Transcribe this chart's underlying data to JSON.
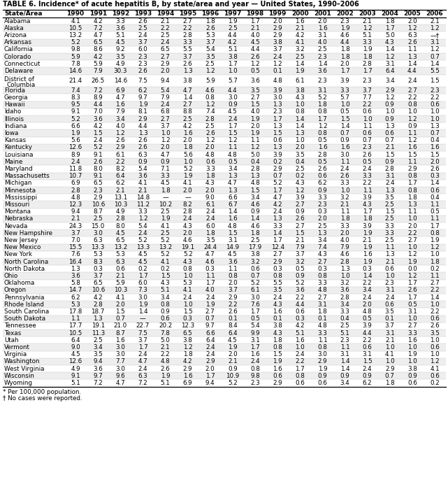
{
  "title": "TABLE 6. Incidence* of acute hepatitis B, by state/area and year — United States, 1990–2006",
  "headers": [
    "State/Area",
    "1990",
    "1991",
    "1992",
    "1993",
    "1994",
    "1995",
    "1996",
    "1997",
    "1998",
    "1999",
    "2000",
    "2001",
    "2002",
    "2003",
    "2004",
    "2005",
    "2006"
  ],
  "rows": [
    [
      "Alabama",
      "4.1",
      "4.2",
      "3.3",
      "2.6",
      "2.1",
      "2.7",
      "1.8",
      "1.9",
      "1.7",
      "2.0",
      "1.6",
      "2.0",
      "2.3",
      "2.1",
      "1.8",
      "2.0",
      "2.1"
    ],
    [
      "Alaska",
      "10.5",
      "7.2",
      "3.6",
      "2.5",
      "2.2",
      "2.2",
      "2.6",
      "2.5",
      "2.1",
      "2.9",
      "2.1",
      "1.6",
      "1.9",
      "1.2",
      "1.7",
      "1.2",
      "1.2"
    ],
    [
      "Arizona",
      "13.2",
      "4.7",
      "5.1",
      "2.4",
      "2.5",
      "2.8",
      "5.3",
      "4.4",
      "4.0",
      "2.9",
      "4.2",
      "3.1",
      "4.6",
      "5.1",
      "5.0",
      "6.3",
      "—†"
    ],
    [
      "Arkansas",
      "5.2",
      "6.5",
      "4.5",
      "3.7",
      "2.4",
      "3.3",
      "3.7",
      "4.2",
      "4.5",
      "3.8",
      "4.1",
      "4.0",
      "4.4",
      "3.3",
      "4.3",
      "2.6",
      "3.1"
    ],
    [
      "California",
      "9.8",
      "8.6",
      "9.2",
      "6.0",
      "6.5",
      "5.5",
      "5.4",
      "5.1",
      "4.4",
      "3.7",
      "3.2",
      "2.5",
      "1.8",
      "1.9",
      "1.4",
      "1.1",
      "1.2"
    ],
    [
      "Colorado",
      "5.9",
      "4.2",
      "3.5",
      "2.3",
      "2.7",
      "3.7",
      "3.5",
      "3.8",
      "2.6",
      "2.4",
      "2.5",
      "2.3",
      "1.8",
      "1.8",
      "1.2",
      "1.3",
      "0.7"
    ],
    [
      "Connecticut",
      "7.8",
      "5.9",
      "4.9",
      "2.3",
      "2.9",
      "2.6",
      "2.5",
      "1.7",
      "1.2",
      "1.2",
      "1.4",
      "1.4",
      "2.0",
      "2.8",
      "3.1",
      "1.4",
      "1.4"
    ],
    [
      "Delaware",
      "14.6",
      "7.9",
      "30.3",
      "2.6",
      "2.0",
      "1.3",
      "1.2",
      "1.0",
      "0.5",
      "0.1",
      "1.9",
      "3.6",
      "1.7",
      "1.7",
      "6.4",
      "4.4",
      "5.5"
    ],
    [
      "District of\nColumbia",
      "21.4",
      "26.5",
      "14.6",
      "7.5",
      "9.4",
      "3.8",
      "5.9",
      "5.7",
      "3.6",
      "4.8",
      "6.1",
      "2.3",
      "3.9",
      "2.3",
      "3.4",
      "2.4",
      "1.5"
    ],
    [
      "Florida",
      "7.4",
      "7.2",
      "6.9",
      "6.2",
      "5.4",
      "4.7",
      "4.6",
      "4.4",
      "3.5",
      "3.9",
      "3.8",
      "3.1",
      "3.3",
      "3.7",
      "2.9",
      "2.7",
      "2.3"
    ],
    [
      "Georgia",
      "8.3",
      "8.9",
      "4.7",
      "9.7",
      "7.9",
      "1.4",
      "0.8",
      "3.0",
      "2.7",
      "3.0",
      "4.3",
      "5.2",
      "5.7",
      "7.7",
      "1.2",
      "2.2",
      "2.2"
    ],
    [
      "Hawaii",
      "9.5",
      "4.4",
      "1.6",
      "1.9",
      "2.4",
      "2.7",
      "1.2",
      "0.9",
      "1.5",
      "1.3",
      "1.0",
      "1.8",
      "1.0",
      "2.2",
      "0.9",
      "0.8",
      "0.6"
    ],
    [
      "Idaho",
      "9.1",
      "7.0",
      "7.9",
      "8.1",
      "6.8",
      "8.8",
      "7.4",
      "4.5",
      "4.0",
      "2.3",
      "0.8",
      "0.8",
      "0.5",
      "0.6",
      "1.0",
      "1.0",
      "1.0"
    ],
    [
      "Illinois",
      "5.2",
      "3.6",
      "3.4",
      "2.9",
      "2.7",
      "2.5",
      "2.8",
      "2.4",
      "1.9",
      "1.7",
      "1.4",
      "1.7",
      "1.5",
      "1.0",
      "0.9",
      "1.2",
      "1.0"
    ],
    [
      "Indiana",
      "6.6",
      "4.2",
      "4.0",
      "4.4",
      "3.7",
      "4.2",
      "2.5",
      "1.7",
      "2.0",
      "1.3",
      "1.4",
      "1.2",
      "1.4",
      "1.1",
      "1.3",
      "0.9",
      "1.3"
    ],
    [
      "Iowa",
      "1.9",
      "1.5",
      "1.2",
      "1.3",
      "1.0",
      "1.6",
      "2.6",
      "1.5",
      "1.9",
      "1.5",
      "1.3",
      "0.8",
      "0.7",
      "0.6",
      "0.6",
      "1.1",
      "0.7"
    ],
    [
      "Kansas",
      "5.6",
      "2.4",
      "2.6",
      "2.6",
      "1.2",
      "2.0",
      "1.2",
      "1.2",
      "1.1",
      "0.6",
      "1.0",
      "0.5",
      "0.9",
      "0.7",
      "0.7",
      "1.2",
      "0.4"
    ],
    [
      "Kentucky",
      "12.6",
      "5.2",
      "2.9",
      "2.6",
      "2.0",
      "1.8",
      "2.0",
      "1.1",
      "1.2",
      "1.3",
      "2.0",
      "1.6",
      "1.6",
      "2.3",
      "2.1",
      "1.6",
      "1.6"
    ],
    [
      "Louisiana",
      "8.9",
      "9.1",
      "6.1",
      "6.3",
      "4.7",
      "5.6",
      "4.8",
      "4.8",
      "5.0",
      "3.9",
      "3.5",
      "2.8",
      "3.0",
      "2.6",
      "1.5",
      "1.5",
      "1.5"
    ],
    [
      "Maine",
      "2.4",
      "2.6",
      "2.2",
      "0.9",
      "0.9",
      "1.0",
      "0.6",
      "0.5",
      "0.4",
      "0.2",
      "0.4",
      "0.5",
      "1.1",
      "0.5",
      "0.9",
      "1.1",
      "2.0"
    ],
    [
      "Maryland",
      "11.8",
      "8.0",
      "8.2",
      "5.4",
      "7.1",
      "5.2",
      "3.3",
      "3.4",
      "2.8",
      "2.9",
      "2.5",
      "2.6",
      "2.4",
      "2.4",
      "2.8",
      "2.9",
      "2.6"
    ],
    [
      "Massachusetts",
      "10.7",
      "9.1",
      "6.4",
      "3.6",
      "3.3",
      "1.9",
      "1.8",
      "1.3",
      "1.3",
      "0.7",
      "0.2",
      "0.6",
      "2.6",
      "3.3",
      "3.1",
      "0.8",
      "0.3"
    ],
    [
      "Michigan",
      "6.9",
      "6.5",
      "6.2",
      "4.1",
      "4.5",
      "4.1",
      "4.3",
      "4.7",
      "4.8",
      "5.2",
      "4.3",
      "6.2",
      "3.3",
      "2.2",
      "2.4",
      "1.7",
      "1.4"
    ],
    [
      "Minnesota",
      "2.8",
      "2.3",
      "2.1",
      "2.1",
      "1.8",
      "2.0",
      "2.0",
      "1.3",
      "1.5",
      "1.7",
      "1.2",
      "0.9",
      "1.0",
      "1.1",
      "1.3",
      "0.8",
      "0.6"
    ],
    [
      "Mississippi",
      "4.8",
      "2.9",
      "13.1",
      "14.8",
      "—",
      "—",
      "9.0",
      "6.6",
      "3.4",
      "4.7",
      "3.9",
      "3.3",
      "3.2",
      "3.9",
      "3.5",
      "1.8",
      "0.4"
    ],
    [
      "Missouri",
      "12.3",
      "10.6",
      "10.3",
      "11.2",
      "10.2",
      "8.2",
      "6.1",
      "6.7",
      "4.6",
      "4.2",
      "2.7",
      "2.3",
      "2.1",
      "4.3",
      "2.5",
      "1.3",
      "1.1"
    ],
    [
      "Montana",
      "9.4",
      "8.7",
      "4.9",
      "3.3",
      "2.5",
      "2.8",
      "2.4",
      "1.4",
      "0.9",
      "2.4",
      "0.9",
      "0.3",
      "1.1",
      "1.7",
      "1.5",
      "1.1",
      "0.5"
    ],
    [
      "Nebraska",
      "2.1",
      "2.5",
      "2.8",
      "1.2",
      "1.9",
      "2.4",
      "2.4",
      "1.6",
      "1.4",
      "1.3",
      "2.6",
      "2.0",
      "1.8",
      "1.8",
      "2.5",
      "1.0",
      "1.1"
    ],
    [
      "Nevada",
      "24.3",
      "15.0",
      "8.0",
      "5.4",
      "4.1",
      "4.3",
      "6.0",
      "4.8",
      "4.6",
      "3.3",
      "2.7",
      "2.5",
      "3.3",
      "3.9",
      "3.3",
      "2.0",
      "1.7"
    ],
    [
      "New Hampshire",
      "3.7",
      "3.0",
      "4.5",
      "2.4",
      "2.5",
      "2.0",
      "1.8",
      "1.5",
      "1.8",
      "1.4",
      "1.5",
      "1.3",
      "2.0",
      "1.9",
      "3.3",
      "2.2",
      "0.8"
    ],
    [
      "New Jersey",
      "7.0",
      "6.3",
      "6.5",
      "5.2",
      "5.2",
      "4.6",
      "3.5",
      "3.1",
      "2.5",
      "1.7",
      "2.1",
      "3.4",
      "4.0",
      "2.1",
      "2.5",
      "2.7",
      "1.9"
    ],
    [
      "New Mexico",
      "15.5",
      "13.3",
      "13.2",
      "13.3",
      "13.2",
      "19.1",
      "24.4",
      "14.9",
      "17.9",
      "12.4",
      "7.9",
      "7.4",
      "7.9",
      "1.9",
      "1.1",
      "1.0",
      "1.2"
    ],
    [
      "New York",
      "7.6",
      "5.3",
      "5.3",
      "4.5",
      "5.2",
      "5.2",
      "4.7",
      "4.5",
      "3.8",
      "2.7",
      "3.7",
      "4.3",
      "4.6",
      "1.6",
      "1.3",
      "1.2",
      "1.0"
    ],
    [
      "North Carolina",
      "16.4",
      "8.3",
      "6.3",
      "4.5",
      "4.1",
      "4.3",
      "4.6",
      "3.6",
      "3.2",
      "2.9",
      "3.2",
      "2.7",
      "2.8",
      "1.9",
      "2.1",
      "1.9",
      "1.8"
    ],
    [
      "North Dakota",
      "1.3",
      "0.3",
      "0.6",
      "0.2",
      "0.2",
      "0.8",
      "0.3",
      "1.1",
      "0.6",
      "0.3",
      "0.5",
      "0.3",
      "1.3",
      "0.3",
      "0.6",
      "0.0",
      "0.2"
    ],
    [
      "Ohio",
      "3.6",
      "3.7",
      "2.1",
      "1.7",
      "1.5",
      "1.0",
      "1.1",
      "0.8",
      "0.7",
      "0.8",
      "0.9",
      "0.8",
      "1.0",
      "1.4",
      "1.0",
      "1.2",
      "1.1"
    ],
    [
      "Oklahoma",
      "5.8",
      "6.5",
      "5.9",
      "6.0",
      "4.3",
      "5.3",
      "1.7",
      "2.0",
      "5.2",
      "5.5",
      "5.2",
      "3.3",
      "3.2",
      "2.2",
      "2.3",
      "1.7",
      "2.7"
    ],
    [
      "Oregon",
      "14.7",
      "10.6",
      "10.3",
      "7.3",
      "5.1",
      "4.1",
      "4.0",
      "3.7",
      "6.1",
      "3.5",
      "3.6",
      "4.8",
      "3.6",
      "3.4",
      "3.1",
      "2.6",
      "2.2"
    ],
    [
      "Pennsylvania",
      "6.2",
      "4.2",
      "4.1",
      "3.0",
      "3.4",
      "2.4",
      "2.4",
      "2.9",
      "3.0",
      "2.4",
      "2.2",
      "2.7",
      "2.8",
      "2.4",
      "2.4",
      "1.7",
      "1.4"
    ],
    [
      "Rhode Island",
      "5.3",
      "2.8",
      "2.0",
      "1.9",
      "0.8",
      "1.0",
      "1.9",
      "2.2",
      "7.6",
      "4.3",
      "4.4",
      "3.1",
      "3.4",
      "2.0",
      "0.6",
      "0.5",
      "1.0"
    ],
    [
      "South Carolina",
      "17.8",
      "18.7",
      "1.5",
      "1.4",
      "0.9",
      "1.5",
      "2.7",
      "2.6",
      "1.7",
      "1.6",
      "0.6",
      "1.8",
      "3.3",
      "4.8",
      "3.5",
      "3.1",
      "2.2"
    ],
    [
      "South Dakota",
      "1.1",
      "1.3",
      "0.7",
      "—",
      "0.6",
      "0.3",
      "0.7",
      "0.1",
      "0.5",
      "0.1",
      "0.3",
      "0.1",
      "0.4",
      "0.5",
      "0.1",
      "1.0",
      "0.6"
    ],
    [
      "Tennessee",
      "17.7",
      "19.1",
      "21.0",
      "22.7",
      "20.2",
      "12.3",
      "9.7",
      "8.4",
      "5.4",
      "3.8",
      "4.2",
      "4.8",
      "2.5",
      "3.9",
      "3.7",
      "2.7",
      "2.6"
    ],
    [
      "Texas",
      "10.5",
      "11.3",
      "8.7",
      "7.5",
      "7.8",
      "6.5",
      "6.6",
      "6.4",
      "9.9",
      "4.3",
      "5.1",
      "3.3",
      "5.1",
      "4.4",
      "3.1",
      "3.3",
      "3.5"
    ],
    [
      "Utah",
      "6.4",
      "2.5",
      "1.6",
      "3.7",
      "5.0",
      "3.8",
      "6.4",
      "4.5",
      "3.1",
      "1.8",
      "1.6",
      "1.1",
      "2.3",
      "2.2",
      "2.1",
      "1.6",
      "1.0"
    ],
    [
      "Vermont",
      "9.0",
      "3.4",
      "3.0",
      "1.7",
      "2.1",
      "1.2",
      "2.4",
      "1.9",
      "1.7",
      "0.8",
      "1.0",
      "0.8",
      "1.1",
      "0.6",
      "1.0",
      "1.0",
      "0.6"
    ],
    [
      "Virginia",
      "4.5",
      "3.5",
      "3.0",
      "2.4",
      "2.2",
      "1.8",
      "2.4",
      "2.0",
      "1.6",
      "1.5",
      "2.4",
      "3.0",
      "3.1",
      "3.1",
      "4.1",
      "1.9",
      "1.0"
    ],
    [
      "Washington",
      "12.6",
      "9.4",
      "7.7",
      "4.7",
      "4.8",
      "4.2",
      "2.9",
      "2.1",
      "2.4",
      "1.9",
      "2.2",
      "2.9",
      "1.4",
      "1.5",
      "1.0",
      "1.0",
      "1.2"
    ],
    [
      "West Virginia",
      "4.9",
      "3.6",
      "3.0",
      "2.4",
      "2.6",
      "2.9",
      "2.0",
      "0.9",
      "0.8",
      "1.6",
      "1.7",
      "1.9",
      "1.4",
      "2.4",
      "2.9",
      "3.8",
      "4.1"
    ],
    [
      "Wisconsin",
      "9.1",
      "9.7",
      "9.6",
      "6.3",
      "1.9",
      "1.6",
      "1.7",
      "10.9",
      "9.8",
      "0.6",
      "0.8",
      "0.9",
      "0.9",
      "0.9",
      "0.7",
      "0.9",
      "0.6"
    ],
    [
      "Wyoming",
      "5.1",
      "7.2",
      "4.7",
      "7.2",
      "5.1",
      "6.9",
      "9.4",
      "5.2",
      "2.3",
      "2.9",
      "0.6",
      "0.6",
      "3.4",
      "6.2",
      "1.8",
      "0.6",
      "0.2"
    ]
  ],
  "footnote1": "* Per 100,000 population.",
  "footnote2": "† No cases were reported.",
  "title_fontsize": 7.0,
  "header_fontsize": 6.5,
  "data_fontsize": 6.3,
  "footnote_fontsize": 6.3
}
